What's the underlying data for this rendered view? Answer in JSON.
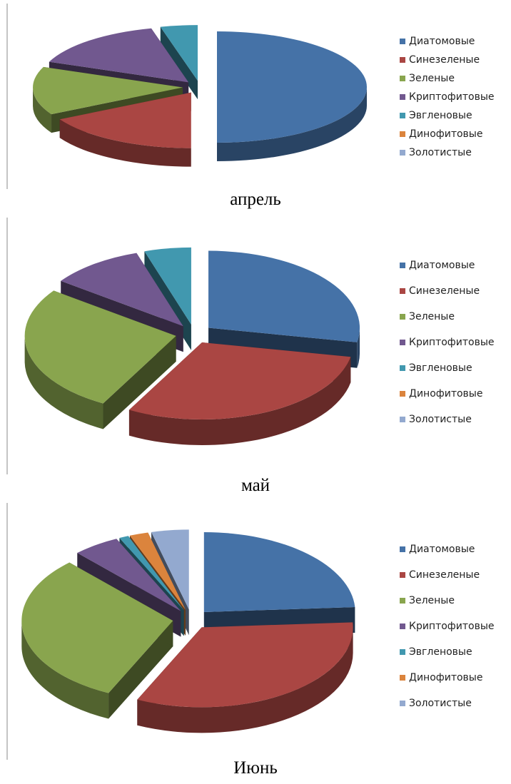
{
  "chart_data": [
    {
      "type": "pie",
      "title": "апрель",
      "categories": [
        "Диатомовые",
        "Синезеленые",
        "Зеленые",
        "Криптофитовые",
        "Эвгленовые",
        "Динофитовые",
        "Золотистые"
      ],
      "values": [
        50,
        17,
        14,
        15,
        4,
        0,
        0
      ],
      "colors": [
        "#4572a7",
        "#aa4643",
        "#89a54e",
        "#71588f",
        "#4198af",
        "#db843d",
        "#93a9cf"
      ]
    },
    {
      "type": "pie",
      "title": "май",
      "categories": [
        "Диатомовые",
        "Синезеленые",
        "Зеленые",
        "Криптофитовые",
        "Эвгленовые",
        "Динофитовые",
        "Золотистые"
      ],
      "values": [
        28,
        30,
        27,
        10,
        5,
        0,
        0
      ],
      "colors": [
        "#4572a7",
        "#aa4643",
        "#89a54e",
        "#71588f",
        "#4198af",
        "#db843d",
        "#93a9cf"
      ]
    },
    {
      "type": "pie",
      "title": "Июнь",
      "categories": [
        "Диатомовые",
        "Синезеленые",
        "Зеленые",
        "Криптофитовые",
        "Эвгленовые",
        "Динофитовые",
        "Золотистые"
      ],
      "values": [
        24,
        33,
        31,
        5,
        1,
        2,
        4
      ],
      "colors": [
        "#4572a7",
        "#aa4643",
        "#89a54e",
        "#71588f",
        "#4198af",
        "#db843d",
        "#93a9cf"
      ]
    }
  ]
}
